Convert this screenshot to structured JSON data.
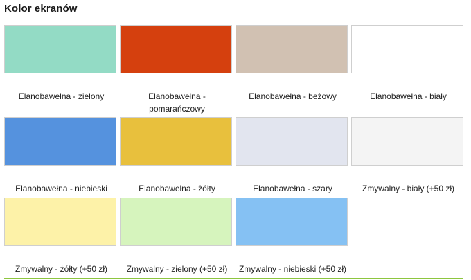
{
  "section": {
    "title": "Kolor ekranów"
  },
  "swatches": [
    {
      "label": "Elanobawełna - zielony",
      "color": "#93dbc5"
    },
    {
      "label": "Elanobawełna - pomarańczowy",
      "color": "#d5400e"
    },
    {
      "label": "Elanobawełna - beżowy",
      "color": "#d1c1b2"
    },
    {
      "label": "Elanobawełna - biały",
      "color": "#ffffff"
    },
    {
      "label": "Elanobawełna - niebieski",
      "color": "#5592de"
    },
    {
      "label": "Elanobawełna - żółty",
      "color": "#e8c03d"
    },
    {
      "label": "Elanobawełna - szary",
      "color": "#e2e5ef"
    },
    {
      "label": "Zmywalny - biały (+50 zł)",
      "color": "#f4f4f4"
    },
    {
      "label": "Zmywalny - żółty (+50 zł)",
      "color": "#fdf2a8"
    },
    {
      "label": "Zmywalny - zielony (+50 zł)",
      "color": "#d6f4bd"
    },
    {
      "label": "Zmywalny - niebieski (+50 zł)",
      "color": "#85c1f3"
    }
  ],
  "colors": {
    "accent_line": "#8dc63f"
  }
}
